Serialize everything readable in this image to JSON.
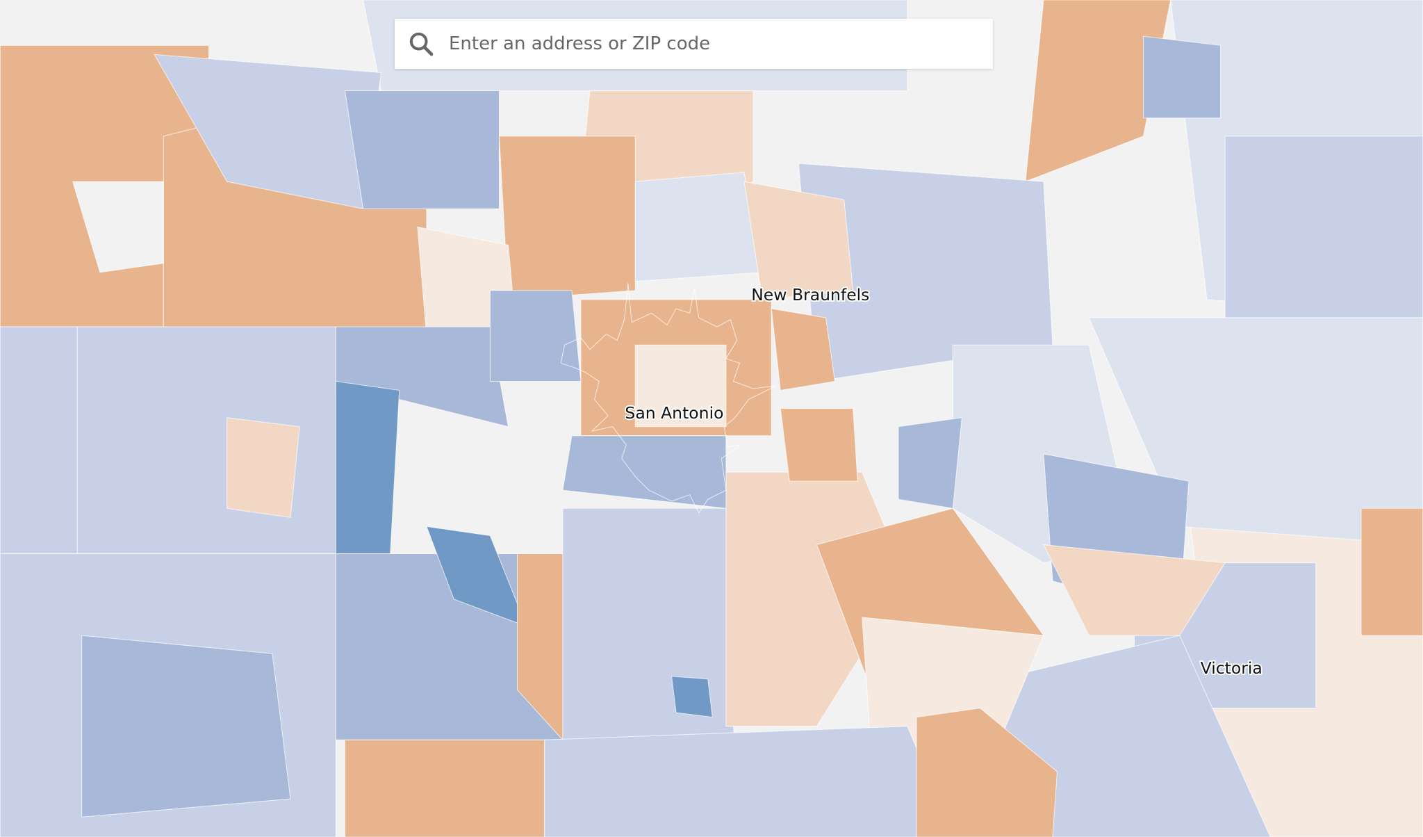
{
  "search": {
    "placeholder": "Enter an address or ZIP code"
  },
  "labels": {
    "new_braunfels": "New Braunfels",
    "san_antonio": "San Antonio",
    "victoria": "Victoria"
  }
}
